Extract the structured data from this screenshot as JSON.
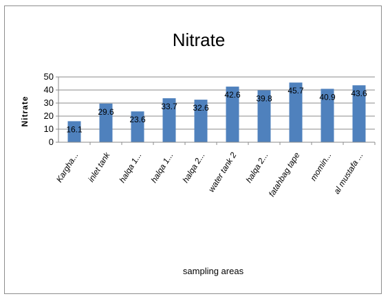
{
  "chart_data": {
    "type": "bar",
    "title": "Nitrate",
    "ylabel": "Nitrate",
    "xlabel": "sampling areas",
    "categories": [
      "Kargha...",
      "inlet tank",
      "halqa 1...",
      "halqa 1...",
      "halqa 2...",
      "water tank 2",
      "halqa 2...",
      "fatahbag tape",
      "momin...",
      "al mustafa ..."
    ],
    "values": [
      16.1,
      29.6,
      23.6,
      33.7,
      32.6,
      42.6,
      39.8,
      45.7,
      40.9,
      43.6
    ],
    "data_labels": [
      "16.1",
      "29.6",
      "23.6",
      "33.7",
      "32.6",
      "42.6",
      "39.8",
      "45.7",
      "40.9",
      "43.6"
    ],
    "ylim": [
      0,
      50
    ],
    "yticks": [
      "0",
      "10",
      "20",
      "30",
      "40",
      "50"
    ],
    "grid": true,
    "legend": "none",
    "bar_color": "#4f81bd"
  }
}
